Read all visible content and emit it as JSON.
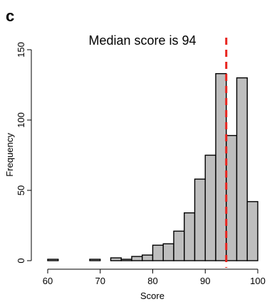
{
  "chart_data": {
    "type": "bar",
    "panel_label": "c",
    "annotation": "Median score is 94",
    "xlabel": "Score",
    "ylabel": "Frequency",
    "xlim": [
      60,
      100
    ],
    "ylim": [
      0,
      150
    ],
    "x_ticks": [
      60,
      70,
      80,
      90,
      100
    ],
    "y_ticks": [
      0,
      50,
      100,
      150
    ],
    "bin_width": 2,
    "bins": [
      {
        "start": 60,
        "end": 62,
        "value": 1
      },
      {
        "start": 62,
        "end": 64,
        "value": 0
      },
      {
        "start": 64,
        "end": 66,
        "value": 0
      },
      {
        "start": 66,
        "end": 68,
        "value": 0
      },
      {
        "start": 68,
        "end": 70,
        "value": 1
      },
      {
        "start": 70,
        "end": 72,
        "value": 0
      },
      {
        "start": 72,
        "end": 74,
        "value": 2
      },
      {
        "start": 74,
        "end": 76,
        "value": 1
      },
      {
        "start": 76,
        "end": 78,
        "value": 3
      },
      {
        "start": 78,
        "end": 80,
        "value": 4
      },
      {
        "start": 80,
        "end": 82,
        "value": 11
      },
      {
        "start": 82,
        "end": 84,
        "value": 12
      },
      {
        "start": 84,
        "end": 86,
        "value": 21
      },
      {
        "start": 86,
        "end": 88,
        "value": 34
      },
      {
        "start": 88,
        "end": 90,
        "value": 58
      },
      {
        "start": 90,
        "end": 92,
        "value": 75
      },
      {
        "start": 92,
        "end": 94,
        "value": 133
      },
      {
        "start": 94,
        "end": 96,
        "value": 89
      },
      {
        "start": 96,
        "end": 98,
        "value": 130
      },
      {
        "start": 98,
        "end": 100,
        "value": 42
      }
    ],
    "median": 94,
    "grid": false,
    "colors": {
      "bar_fill": "#bebebe",
      "bar_edge": "#000000",
      "median_line": "#e8231d"
    }
  }
}
